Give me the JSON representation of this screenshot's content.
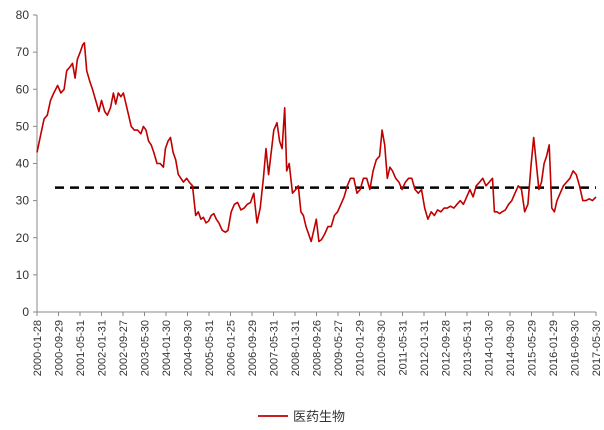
{
  "chart_data": {
    "type": "line",
    "title": "",
    "xlabel": "",
    "ylabel": "",
    "ylim": [
      0,
      80
    ],
    "yticks": [
      0,
      10,
      20,
      30,
      40,
      50,
      60,
      70,
      80
    ],
    "x_tick_labels": [
      "2000-01-28",
      "2000-09-29",
      "2001-05-31",
      "2002-01-31",
      "2002-09-27",
      "2003-05-30",
      "2004-01-30",
      "2004-09-30",
      "2005-05-31",
      "2006-01-25",
      "2006-09-29",
      "2007-05-31",
      "2008-01-31",
      "2008-09-26",
      "2009-05-27",
      "2010-01-29",
      "2010-09-30",
      "2011-05-31",
      "2012-01-31",
      "2012-09-28",
      "2013-05-31",
      "2014-01-30",
      "2014-09-30",
      "2015-05-29",
      "2016-01-29",
      "2016-09-30",
      "2017-05-30"
    ],
    "grid": false,
    "legend_position": "bottom",
    "reference_line": {
      "value": 33.5,
      "style": "dashed",
      "color": "#000000"
    },
    "series": [
      {
        "name": "医药生物",
        "color": "#c00000",
        "points": [
          [
            2000.08,
            43
          ],
          [
            2000.2,
            48
          ],
          [
            2000.3,
            52
          ],
          [
            2000.4,
            53
          ],
          [
            2000.5,
            57
          ],
          [
            2000.6,
            59
          ],
          [
            2000.72,
            61
          ],
          [
            2000.82,
            59
          ],
          [
            2000.92,
            60
          ],
          [
            2001.0,
            65
          ],
          [
            2001.1,
            66
          ],
          [
            2001.18,
            67
          ],
          [
            2001.26,
            63
          ],
          [
            2001.33,
            68
          ],
          [
            2001.42,
            70
          ],
          [
            2001.5,
            72
          ],
          [
            2001.55,
            72.5
          ],
          [
            2001.62,
            65
          ],
          [
            2001.72,
            62
          ],
          [
            2001.8,
            60
          ],
          [
            2001.9,
            57
          ],
          [
            2002.0,
            54
          ],
          [
            2002.08,
            57
          ],
          [
            2002.18,
            54
          ],
          [
            2002.26,
            53
          ],
          [
            2002.36,
            55
          ],
          [
            2002.45,
            59
          ],
          [
            2002.52,
            56
          ],
          [
            2002.6,
            59
          ],
          [
            2002.68,
            58
          ],
          [
            2002.76,
            59
          ],
          [
            2002.84,
            56
          ],
          [
            2002.92,
            53
          ],
          [
            2003.0,
            50
          ],
          [
            2003.1,
            49
          ],
          [
            2003.2,
            49
          ],
          [
            2003.3,
            48
          ],
          [
            2003.38,
            50
          ],
          [
            2003.46,
            49
          ],
          [
            2003.54,
            46
          ],
          [
            2003.62,
            45
          ],
          [
            2003.7,
            43
          ],
          [
            2003.8,
            40
          ],
          [
            2003.9,
            40
          ],
          [
            2004.0,
            39
          ],
          [
            2004.06,
            44
          ],
          [
            2004.14,
            46
          ],
          [
            2004.22,
            47
          ],
          [
            2004.3,
            43
          ],
          [
            2004.38,
            41
          ],
          [
            2004.46,
            37
          ],
          [
            2004.54,
            36
          ],
          [
            2004.62,
            35
          ],
          [
            2004.72,
            36
          ],
          [
            2004.8,
            35
          ],
          [
            2004.9,
            34
          ],
          [
            2005.0,
            26
          ],
          [
            2005.08,
            27
          ],
          [
            2005.16,
            25
          ],
          [
            2005.24,
            25.5
          ],
          [
            2005.32,
            24
          ],
          [
            2005.4,
            24.5
          ],
          [
            2005.48,
            26
          ],
          [
            2005.56,
            26.5
          ],
          [
            2005.64,
            25
          ],
          [
            2005.72,
            24
          ],
          [
            2005.82,
            22
          ],
          [
            2005.92,
            21.5
          ],
          [
            2006.0,
            22
          ],
          [
            2006.1,
            27
          ],
          [
            2006.2,
            29
          ],
          [
            2006.3,
            29.5
          ],
          [
            2006.4,
            27.5
          ],
          [
            2006.5,
            28
          ],
          [
            2006.6,
            29
          ],
          [
            2006.7,
            29.5
          ],
          [
            2006.8,
            32
          ],
          [
            2006.9,
            24
          ],
          [
            2007.0,
            28
          ],
          [
            2007.1,
            36
          ],
          [
            2007.18,
            44
          ],
          [
            2007.26,
            37
          ],
          [
            2007.34,
            43
          ],
          [
            2007.42,
            49
          ],
          [
            2007.52,
            51
          ],
          [
            2007.6,
            46
          ],
          [
            2007.68,
            44
          ],
          [
            2007.76,
            55
          ],
          [
            2007.82,
            38
          ],
          [
            2007.9,
            40
          ],
          [
            2008.0,
            32
          ],
          [
            2008.1,
            33
          ],
          [
            2008.18,
            34
          ],
          [
            2008.26,
            27
          ],
          [
            2008.34,
            26
          ],
          [
            2008.42,
            23
          ],
          [
            2008.5,
            21
          ],
          [
            2008.58,
            19
          ],
          [
            2008.66,
            22
          ],
          [
            2008.74,
            25
          ],
          [
            2008.82,
            19
          ],
          [
            2008.9,
            19.5
          ],
          [
            2009.0,
            21
          ],
          [
            2009.1,
            23
          ],
          [
            2009.2,
            23
          ],
          [
            2009.3,
            26
          ],
          [
            2009.4,
            27
          ],
          [
            2009.5,
            29
          ],
          [
            2009.6,
            31
          ],
          [
            2009.7,
            34
          ],
          [
            2009.8,
            36
          ],
          [
            2009.9,
            36
          ],
          [
            2010.0,
            32
          ],
          [
            2010.1,
            33
          ],
          [
            2010.2,
            36
          ],
          [
            2010.3,
            36
          ],
          [
            2010.4,
            33
          ],
          [
            2010.5,
            38
          ],
          [
            2010.6,
            41
          ],
          [
            2010.7,
            42
          ],
          [
            2010.78,
            49
          ],
          [
            2010.86,
            45
          ],
          [
            2010.94,
            36
          ],
          [
            2011.02,
            39
          ],
          [
            2011.1,
            38
          ],
          [
            2011.2,
            36
          ],
          [
            2011.3,
            35
          ],
          [
            2011.4,
            33
          ],
          [
            2011.5,
            35
          ],
          [
            2011.6,
            36
          ],
          [
            2011.7,
            36
          ],
          [
            2011.8,
            33
          ],
          [
            2011.9,
            32
          ],
          [
            2012.0,
            33
          ],
          [
            2012.1,
            28
          ],
          [
            2012.2,
            25
          ],
          [
            2012.3,
            27
          ],
          [
            2012.4,
            26
          ],
          [
            2012.5,
            27.5
          ],
          [
            2012.6,
            27
          ],
          [
            2012.7,
            28
          ],
          [
            2012.8,
            28
          ],
          [
            2012.9,
            28.5
          ],
          [
            2013.0,
            28
          ],
          [
            2013.1,
            29
          ],
          [
            2013.2,
            30
          ],
          [
            2013.3,
            29
          ],
          [
            2013.4,
            31
          ],
          [
            2013.5,
            33
          ],
          [
            2013.6,
            31
          ],
          [
            2013.7,
            34
          ],
          [
            2013.8,
            35
          ],
          [
            2013.9,
            36
          ],
          [
            2014.0,
            34
          ],
          [
            2014.1,
            35
          ],
          [
            2014.2,
            36
          ],
          [
            2014.26,
            27
          ],
          [
            2014.34,
            27
          ],
          [
            2014.42,
            26.5
          ],
          [
            2014.5,
            27
          ],
          [
            2014.6,
            27.5
          ],
          [
            2014.7,
            29
          ],
          [
            2014.8,
            30
          ],
          [
            2014.9,
            32
          ],
          [
            2015.0,
            34
          ],
          [
            2015.1,
            33
          ],
          [
            2015.2,
            27
          ],
          [
            2015.3,
            29
          ],
          [
            2015.4,
            40
          ],
          [
            2015.48,
            47
          ],
          [
            2015.56,
            40
          ],
          [
            2015.64,
            33
          ],
          [
            2015.72,
            35
          ],
          [
            2015.8,
            40
          ],
          [
            2015.88,
            42
          ],
          [
            2015.96,
            45
          ],
          [
            2016.04,
            28
          ],
          [
            2016.12,
            27
          ],
          [
            2016.2,
            30
          ],
          [
            2016.3,
            32
          ],
          [
            2016.4,
            34
          ],
          [
            2016.5,
            35
          ],
          [
            2016.6,
            36
          ],
          [
            2016.7,
            38
          ],
          [
            2016.8,
            37
          ],
          [
            2016.9,
            34
          ],
          [
            2017.0,
            30
          ],
          [
            2017.1,
            30
          ],
          [
            2017.2,
            30.5
          ],
          [
            2017.3,
            30
          ],
          [
            2017.41,
            31
          ]
        ]
      }
    ]
  }
}
